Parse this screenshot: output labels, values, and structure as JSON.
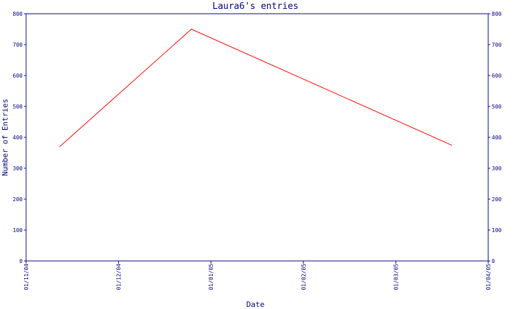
{
  "chart_data": {
    "type": "line",
    "title": "Laura6's entries",
    "xlabel": "Date",
    "ylabel": "Number of Entries",
    "x_ticks": [
      "01/11/04",
      "01/12/04",
      "01/01/05",
      "01/02/05",
      "01/03/05",
      "01/04/05"
    ],
    "y_ticks": [
      "0",
      "100",
      "200",
      "300",
      "400",
      "500",
      "600",
      "700",
      "800"
    ],
    "ylim": [
      0,
      800
    ],
    "xlim": [
      "2004-11-01",
      "2005-04-01"
    ],
    "grid": false,
    "series": [
      {
        "color": "#ff0000",
        "x": [
          "2004-11-12",
          "2004-12-25",
          "2005-03-20"
        ],
        "y": [
          370,
          750,
          375
        ]
      }
    ]
  },
  "colors": {
    "axis": "#000080",
    "text": "#000080",
    "line": "#ff0000",
    "background": "#ffffff"
  }
}
